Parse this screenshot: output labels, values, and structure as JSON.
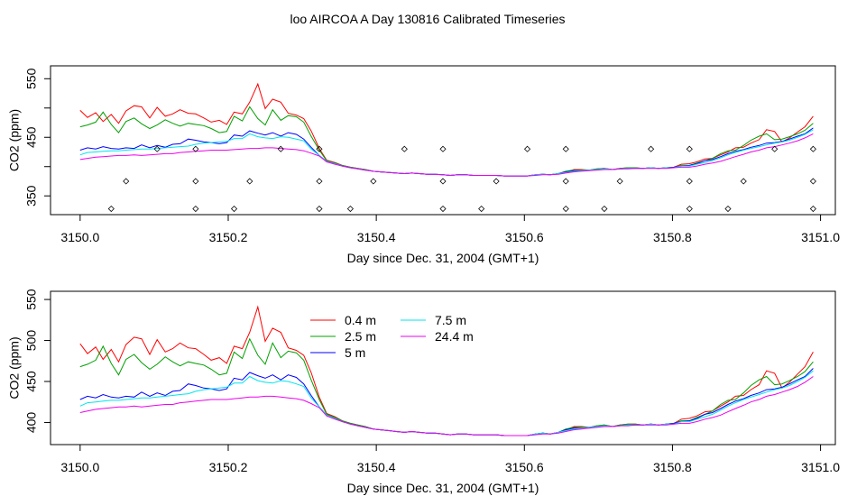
{
  "title": "loo AIRCOA A  Day 130816  Calibrated Timeseries",
  "chart_data": [
    {
      "type": "line",
      "id": "top",
      "xlabel": "Day since Dec. 31, 2004 (GMT+1)",
      "ylabel": "CO2 (ppm)",
      "xlim": [
        3149.96,
        3151.02
      ],
      "ylim": [
        318,
        572
      ],
      "xticks": [
        "3150.0",
        "3150.2",
        "3150.4",
        "3150.6",
        "3150.8",
        "3151.0"
      ],
      "yticks": [
        "350",
        "400",
        "450",
        "500",
        "550"
      ],
      "yticks_visible": [
        "350",
        "450",
        "550"
      ],
      "x": [
        3150.0,
        3150.01,
        3150.021,
        3150.031,
        3150.042,
        3150.052,
        3150.062,
        3150.073,
        3150.083,
        3150.094,
        3150.104,
        3150.115,
        3150.125,
        3150.135,
        3150.146,
        3150.156,
        3150.167,
        3150.177,
        3150.188,
        3150.198,
        3150.208,
        3150.219,
        3150.229,
        3150.24,
        3150.25,
        3150.26,
        3150.271,
        3150.281,
        3150.292,
        3150.302,
        3150.312,
        3150.323,
        3150.333,
        3150.344,
        3150.354,
        3150.365,
        3150.375,
        3150.385,
        3150.396,
        3150.406,
        3150.417,
        3150.427,
        3150.438,
        3150.448,
        3150.458,
        3150.469,
        3150.479,
        3150.49,
        3150.5,
        3150.51,
        3150.521,
        3150.531,
        3150.542,
        3150.552,
        3150.562,
        3150.573,
        3150.583,
        3150.594,
        3150.604,
        3150.615,
        3150.625,
        3150.635,
        3150.646,
        3150.656,
        3150.667,
        3150.677,
        3150.688,
        3150.698,
        3150.708,
        3150.719,
        3150.729,
        3150.74,
        3150.75,
        3150.76,
        3150.771,
        3150.781,
        3150.792,
        3150.802,
        3150.812,
        3150.823,
        3150.833,
        3150.844,
        3150.854,
        3150.865,
        3150.875,
        3150.885,
        3150.896,
        3150.906,
        3150.917,
        3150.927,
        3150.938,
        3150.948,
        3150.958,
        3150.969,
        3150.979,
        3150.99
      ],
      "series": [
        {
          "color": "#ff0000",
          "values": [
            496,
            484,
            492,
            477,
            489,
            474,
            495,
            504,
            502,
            483,
            501,
            486,
            490,
            497,
            491,
            490,
            483,
            476,
            479,
            472,
            493,
            490,
            510,
            541,
            499,
            515,
            510,
            491,
            488,
            482,
            461,
            431,
            411,
            407,
            402,
            399,
            397,
            395,
            392,
            391,
            390,
            389,
            388,
            389,
            388,
            387,
            387,
            386,
            385,
            386,
            386,
            385,
            385,
            385,
            385,
            384,
            384,
            384,
            384,
            386,
            387,
            386,
            388,
            391,
            395,
            395,
            394,
            396,
            397,
            395,
            397,
            398,
            398,
            397,
            398,
            397,
            398,
            399,
            404,
            405,
            408,
            413,
            414,
            420,
            425,
            432,
            433,
            440,
            446,
            463,
            460,
            442,
            449,
            459,
            468,
            486
          ]
        },
        {
          "color": "#00a000",
          "values": [
            468,
            471,
            476,
            493,
            472,
            458,
            477,
            483,
            473,
            465,
            471,
            480,
            474,
            469,
            474,
            472,
            470,
            465,
            458,
            460,
            486,
            478,
            502,
            482,
            471,
            497,
            479,
            487,
            485,
            476,
            452,
            428,
            410,
            406,
            402,
            399,
            397,
            395,
            392,
            391,
            390,
            389,
            388,
            389,
            388,
            387,
            387,
            386,
            385,
            386,
            386,
            385,
            385,
            385,
            385,
            384,
            384,
            384,
            384,
            386,
            387,
            386,
            388,
            392,
            394,
            394,
            394,
            396,
            397,
            395,
            397,
            398,
            398,
            397,
            398,
            397,
            398,
            399,
            402,
            402,
            406,
            410,
            414,
            422,
            427,
            428,
            436,
            445,
            452,
            456,
            446,
            447,
            451,
            456,
            462,
            474
          ]
        },
        {
          "color": "#0000ff",
          "values": [
            428,
            432,
            430,
            434,
            431,
            430,
            432,
            431,
            437,
            432,
            436,
            433,
            438,
            439,
            447,
            445,
            442,
            441,
            439,
            441,
            454,
            452,
            461,
            457,
            454,
            458,
            452,
            458,
            455,
            447,
            433,
            419,
            409,
            405,
            401,
            398,
            396,
            394,
            392,
            391,
            390,
            389,
            388,
            389,
            388,
            387,
            387,
            386,
            385,
            386,
            386,
            385,
            385,
            385,
            385,
            384,
            384,
            384,
            384,
            386,
            387,
            386,
            388,
            391,
            393,
            393,
            394,
            395,
            396,
            395,
            396,
            397,
            397,
            397,
            398,
            397,
            398,
            399,
            401,
            402,
            405,
            410,
            412,
            417,
            422,
            426,
            429,
            433,
            436,
            440,
            441,
            443,
            447,
            452,
            456,
            466
          ]
        },
        {
          "color": "#00e5ee",
          "values": [
            420,
            424,
            425,
            426,
            427,
            427,
            428,
            429,
            430,
            430,
            431,
            432,
            433,
            434,
            435,
            438,
            440,
            441,
            442,
            443,
            448,
            448,
            456,
            451,
            449,
            448,
            451,
            450,
            447,
            444,
            430,
            419,
            409,
            405,
            401,
            398,
            396,
            394,
            392,
            391,
            390,
            389,
            388,
            389,
            388,
            387,
            387,
            386,
            385,
            386,
            386,
            385,
            385,
            385,
            385,
            384,
            384,
            384,
            384,
            386,
            387,
            386,
            388,
            390,
            392,
            393,
            394,
            395,
            396,
            395,
            396,
            397,
            397,
            397,
            398,
            397,
            398,
            398,
            401,
            401,
            404,
            407,
            410,
            415,
            420,
            424,
            428,
            431,
            434,
            437,
            440,
            442,
            445,
            450,
            455,
            463
          ]
        },
        {
          "color": "#ee00ee",
          "values": [
            412,
            414,
            416,
            417,
            418,
            419,
            419,
            420,
            419,
            420,
            421,
            422,
            422,
            424,
            425,
            426,
            427,
            428,
            428,
            428,
            429,
            430,
            431,
            431,
            432,
            432,
            431,
            430,
            429,
            427,
            423,
            418,
            408,
            404,
            401,
            398,
            396,
            394,
            392,
            391,
            390,
            389,
            388,
            389,
            388,
            387,
            387,
            386,
            385,
            386,
            386,
            385,
            385,
            385,
            385,
            384,
            384,
            384,
            384,
            385,
            386,
            386,
            387,
            389,
            391,
            392,
            393,
            394,
            395,
            395,
            396,
            396,
            397,
            397,
            397,
            397,
            397,
            398,
            399,
            399,
            401,
            404,
            406,
            409,
            413,
            417,
            421,
            425,
            428,
            432,
            434,
            437,
            440,
            444,
            449,
            456
          ]
        }
      ],
      "markers": {
        "symbol": "diamond",
        "x": [
          3150.042,
          3150.062,
          3150.104,
          3150.156,
          3150.156,
          3150.156,
          3150.208,
          3150.229,
          3150.271,
          3150.323,
          3150.323,
          3150.323,
          3150.365,
          3150.396,
          3150.438,
          3150.49,
          3150.49,
          3150.49,
          3150.542,
          3150.562,
          3150.604,
          3150.656,
          3150.656,
          3150.656,
          3150.708,
          3150.729,
          3150.771,
          3150.823,
          3150.823,
          3150.823,
          3150.875,
          3150.896,
          3150.938,
          3150.99,
          3150.99,
          3150.99
        ],
        "y": [
          328,
          375,
          430,
          328,
          375,
          430,
          328,
          375,
          430,
          328,
          375,
          430,
          328,
          375,
          430,
          328,
          375,
          430,
          328,
          375,
          430,
          328,
          375,
          430,
          328,
          375,
          430,
          328,
          375,
          430,
          328,
          375,
          430,
          328,
          375,
          430
        ]
      }
    },
    {
      "type": "line",
      "id": "bottom",
      "xlabel": "Day since Dec. 31, 2004 (GMT+1)",
      "ylabel": "CO2 (ppm)",
      "xlim": [
        3149.96,
        3151.02
      ],
      "ylim": [
        373,
        560
      ],
      "xticks": [
        "3150.0",
        "3150.2",
        "3150.4",
        "3150.6",
        "3150.8",
        "3151.0"
      ],
      "yticks": [
        "400",
        "450",
        "500",
        "550"
      ],
      "legend": {
        "placement": "top-left",
        "entries": [
          {
            "label": "0.4 m",
            "color": "#ff0000"
          },
          {
            "label": "2.5 m",
            "color": "#00a000"
          },
          {
            "label": "5 m",
            "color": "#0000ff"
          },
          {
            "label": "7.5 m",
            "color": "#00e5ee"
          },
          {
            "label": "24.4 m",
            "color": "#ee00ee"
          }
        ]
      },
      "same_series_as": "top"
    }
  ]
}
